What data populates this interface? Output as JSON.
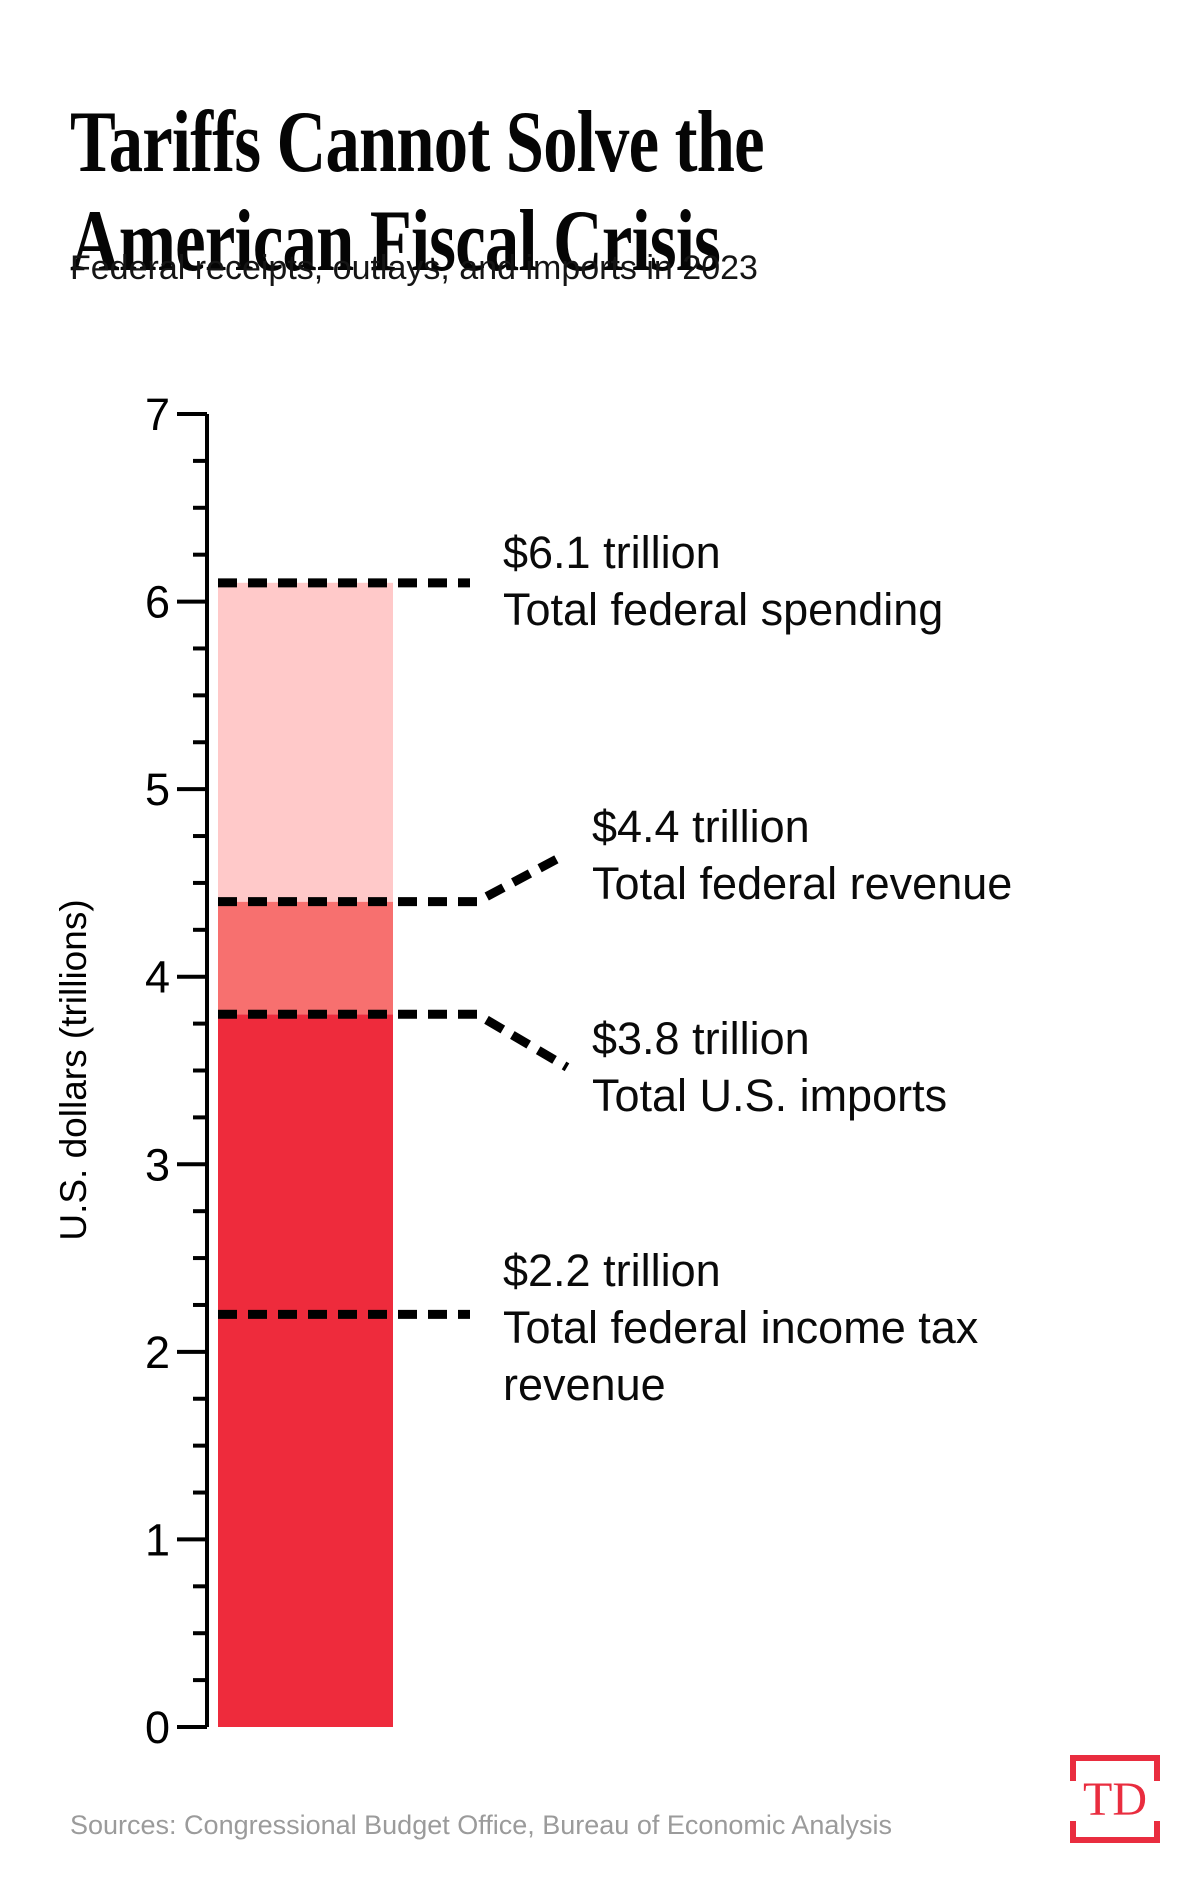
{
  "header": {
    "title": "Tariffs Cannot Solve the American Fiscal Crisis",
    "subtitle": "Federal receipts, outlays, and imports in 2023"
  },
  "chart_data": {
    "type": "bar",
    "title": "Tariffs Cannot Solve the American Fiscal Crisis",
    "subtitle": "Federal receipts, outlays, and imports in 2023",
    "ylabel": "U.S. dollars (trillions)",
    "ylim": [
      0,
      7
    ],
    "ytick_step": 1,
    "yminor_step": 0.25,
    "grid": false,
    "bar": {
      "segments": [
        {
          "name": "imports",
          "from": 0,
          "to": 3.8,
          "color": "#ee2b3c"
        },
        {
          "name": "revenue-above-imports",
          "from": 3.8,
          "to": 4.4,
          "color": "#f7706f"
        },
        {
          "name": "spending-above-revenue",
          "from": 4.4,
          "to": 6.1,
          "color": "#ffc9c9"
        }
      ]
    },
    "annotations": [
      {
        "value": 6.1,
        "value_label": "$6.1 trillion",
        "label": "Total federal spending"
      },
      {
        "value": 4.4,
        "value_label": "$4.4 trillion",
        "label": "Total federal revenue"
      },
      {
        "value": 3.8,
        "value_label": "$3.8 trillion",
        "label": "Total U.S. imports"
      },
      {
        "value": 2.2,
        "value_label": "$2.2 trillion",
        "label": "Total federal income tax revenue"
      }
    ],
    "axis_color": "#000000",
    "leader_line_color": "#000000"
  },
  "footer": {
    "sources": "Sources: Congressional Budget Office, Bureau of Economic Analysis",
    "logo_text": "TD",
    "logo_color": "#e92d3f"
  }
}
